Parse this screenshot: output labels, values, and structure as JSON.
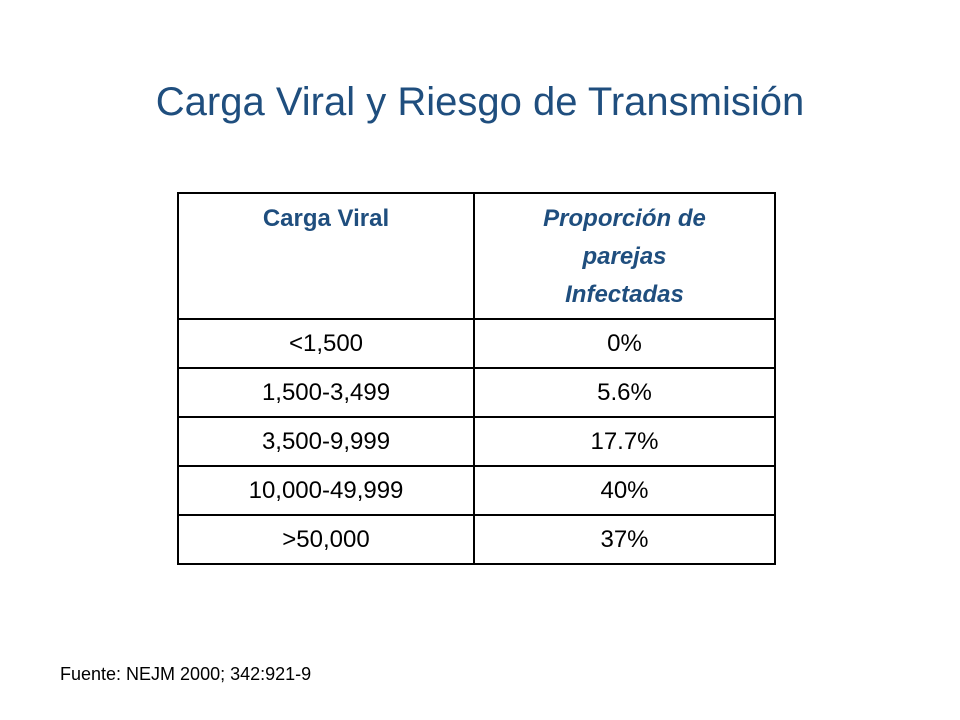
{
  "slide": {
    "title": "Carga Viral y Riesgo de Transmisión",
    "source": "Fuente: NEJM 2000; 342:921-9"
  },
  "table": {
    "headers": [
      "Carga Viral",
      "Proporción de parejas Infectadas"
    ],
    "rows": [
      [
        "<1,500",
        "0%"
      ],
      [
        "1,500-3,499",
        "5.6%"
      ],
      [
        "3,500-9,999",
        "17.7%"
      ],
      [
        "10,000-49,999",
        "40%"
      ],
      [
        ">50,000",
        "37%"
      ]
    ]
  },
  "colors": {
    "title": "#1f4e7e",
    "header_text": "#1f4e7e",
    "border": "#000000"
  }
}
